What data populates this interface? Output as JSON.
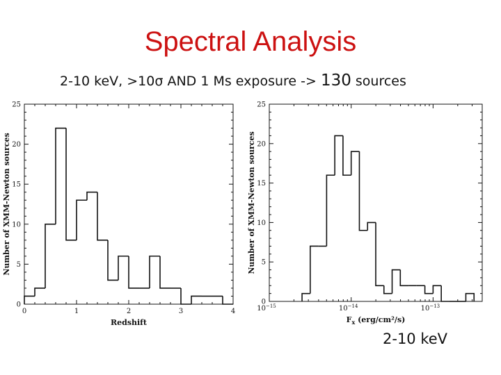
{
  "slide": {
    "title": "Spectral Analysis",
    "subtitle_pre": "2-10 keV,  >10",
    "subtitle_sigma": "σ",
    "subtitle_mid": " AND 1 Ms exposure -> ",
    "subtitle_count": "130",
    "subtitle_post": " sources",
    "footer": "2-10 keV"
  },
  "chart_data": [
    {
      "type": "histogram",
      "xlabel": "Redshift",
      "ylabel": "Number of XMM-Newton sources",
      "xlim": [
        0,
        4
      ],
      "ylim": [
        0,
        25
      ],
      "xticks": [
        {
          "v": 0,
          "label": "0"
        },
        {
          "v": 1,
          "label": "1"
        },
        {
          "v": 2,
          "label": "2"
        },
        {
          "v": 3,
          "label": "3"
        },
        {
          "v": 4,
          "label": "4"
        }
      ],
      "yticks": [
        {
          "v": 0,
          "label": "0"
        },
        {
          "v": 5,
          "label": "5"
        },
        {
          "v": 10,
          "label": "10"
        },
        {
          "v": 15,
          "label": "15"
        },
        {
          "v": 20,
          "label": "20"
        },
        {
          "v": 25,
          "label": "25"
        }
      ],
      "bin_edges": [
        0,
        0.2,
        0.4,
        0.6,
        0.8,
        1.0,
        1.2,
        1.4,
        1.6,
        1.8,
        2.0,
        2.2,
        2.4,
        2.6,
        2.8,
        3.0,
        3.2,
        3.4,
        3.6,
        3.8,
        4.0
      ],
      "counts": [
        1,
        2,
        10,
        22,
        8,
        13,
        14,
        8,
        3,
        6,
        2,
        2,
        6,
        2,
        2,
        0,
        1,
        1,
        1,
        0
      ]
    },
    {
      "type": "histogram",
      "xlabel": "F_x (erg/cm²/s)",
      "xlabel_main": "F",
      "xlabel_sub": "x",
      "xlabel_unit": "(erg/cm²/s)",
      "ylabel": "Number of XMM-Newton sources",
      "xscale": "log",
      "xlim": [
        -15,
        -12.4
      ],
      "ylim": [
        0,
        25
      ],
      "xticks": [
        {
          "v": -15,
          "base": "10",
          "exp": "−15"
        },
        {
          "v": -14,
          "base": "10",
          "exp": "−14"
        },
        {
          "v": -13,
          "base": "10",
          "exp": "−13"
        }
      ],
      "yticks": [
        {
          "v": 0,
          "label": "0"
        },
        {
          "v": 5,
          "label": "5"
        },
        {
          "v": 10,
          "label": "10"
        },
        {
          "v": 15,
          "label": "15"
        },
        {
          "v": 20,
          "label": "20"
        },
        {
          "v": 25,
          "label": "25"
        }
      ],
      "bin_edges_log10": [
        -14.6,
        -14.5,
        -14.4,
        -14.3,
        -14.2,
        -14.1,
        -14.0,
        -13.9,
        -13.8,
        -13.7,
        -13.6,
        -13.5,
        -13.4,
        -13.3,
        -13.2,
        -13.1,
        -13.0,
        -12.9,
        -12.8,
        -12.7,
        -12.6,
        -12.5
      ],
      "counts": [
        1,
        7,
        7,
        16,
        21,
        16,
        19,
        9,
        10,
        2,
        1,
        4,
        2,
        2,
        2,
        1,
        2,
        0,
        0,
        0,
        1
      ]
    }
  ]
}
